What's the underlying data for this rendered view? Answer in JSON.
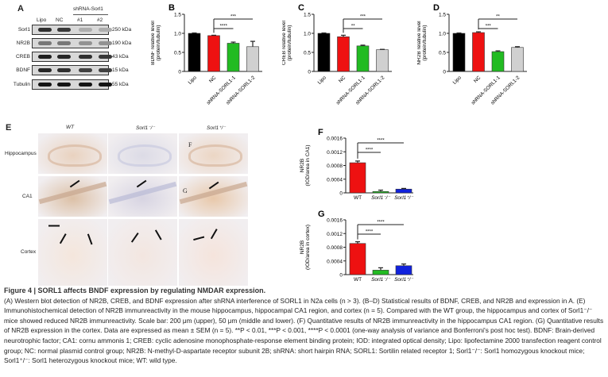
{
  "panel_a": {
    "label": "A",
    "lanes": [
      "Lipo",
      "NC",
      "#1",
      "#2"
    ],
    "group_label": "shRNA-Sorl1",
    "rows": [
      {
        "protein": "Sorl1",
        "kda": "250 kDa",
        "intensity": [
          0.85,
          0.8,
          0.15,
          0.15
        ]
      },
      {
        "protein": "NR2B",
        "kda": "190 kDa",
        "intensity": [
          0.45,
          0.45,
          0.3,
          0.3
        ]
      },
      {
        "protein": "CREB",
        "kda": "43 kDa",
        "intensity": [
          0.95,
          0.9,
          0.85,
          0.8
        ]
      },
      {
        "protein": "BDNF",
        "kda": "15 kDa",
        "intensity": [
          0.9,
          0.85,
          0.75,
          0.75
        ]
      },
      {
        "protein": "Tubulin",
        "kda": "55 kDa",
        "intensity": [
          1,
          1,
          1,
          1
        ]
      }
    ]
  },
  "panel_e": {
    "label": "E",
    "columns": [
      "WT",
      "Sorl1⁻/⁻",
      "Sorl1⁺/⁻"
    ],
    "rows": [
      "Hippocampus",
      "CA1",
      "Cortex"
    ],
    "overlay_letters": [
      "F",
      "G"
    ]
  },
  "chart_data": [
    {
      "id": "B",
      "label": "B",
      "type": "bar",
      "categories": [
        "Lipo",
        "NC",
        "shRNA-SORL1-1",
        "shRNA-SORL1-2"
      ],
      "values": [
        1.0,
        0.94,
        0.74,
        0.65
      ],
      "errors": [
        0.01,
        0.01,
        0.03,
        0.14
      ],
      "colors": [
        "#000000",
        "#ee1111",
        "#22bb22",
        "#d0d0d0"
      ],
      "ylabel": "BDNF relative level",
      "ylabel2": "(protein/tubulin)",
      "ylim": [
        0,
        1.5
      ],
      "yticks": [
        "0",
        "0.5",
        "1.0",
        "1.5"
      ],
      "ytick_values": [
        0,
        0.5,
        1.0,
        1.5
      ],
      "significance": [
        {
          "from": 1,
          "to": 2,
          "label": "****"
        },
        {
          "from": 1,
          "to": 3,
          "label": "***"
        }
      ]
    },
    {
      "id": "C",
      "label": "C",
      "type": "bar",
      "categories": [
        "Lipo",
        "NC",
        "shRNA-SORL1-1",
        "shRNA-SORL1-2"
      ],
      "values": [
        1.0,
        0.91,
        0.67,
        0.57
      ],
      "errors": [
        0.01,
        0.04,
        0.02,
        0.01
      ],
      "colors": [
        "#000000",
        "#ee1111",
        "#22bb22",
        "#d0d0d0"
      ],
      "ylabel": "CREB relative level",
      "ylabel2": "(protein/tubulin)",
      "ylim": [
        0,
        1.5
      ],
      "yticks": [
        "0",
        "0.5",
        "1.0",
        "1.5"
      ],
      "ytick_values": [
        0,
        0.5,
        1.0,
        1.5
      ],
      "significance": [
        {
          "from": 1,
          "to": 2,
          "label": "**"
        },
        {
          "from": 1,
          "to": 3,
          "label": "***"
        }
      ]
    },
    {
      "id": "D",
      "label": "D",
      "type": "bar",
      "categories": [
        "Lipo",
        "NC",
        "shRNA-SORL1-1",
        "shRNA-SORL1-2"
      ],
      "values": [
        1.0,
        1.02,
        0.52,
        0.63
      ],
      "errors": [
        0.01,
        0.02,
        0.02,
        0.02
      ],
      "colors": [
        "#000000",
        "#ee1111",
        "#22bb22",
        "#d0d0d0"
      ],
      "ylabel": "NR2B relative level",
      "ylabel2": "(protein/tubulin)",
      "ylim": [
        0,
        1.5
      ],
      "yticks": [
        "0",
        "0.5",
        "1.0",
        "1.5"
      ],
      "ytick_values": [
        0,
        0.5,
        1.0,
        1.5
      ],
      "significance": [
        {
          "from": 1,
          "to": 2,
          "label": "***"
        },
        {
          "from": 1,
          "to": 3,
          "label": "**"
        }
      ]
    },
    {
      "id": "F",
      "label": "F",
      "type": "bar",
      "categories": [
        "WT",
        "Sorl1⁻/⁻",
        "Sorl1⁺/⁻"
      ],
      "values": [
        0.00088,
        4e-05,
        0.00011
      ],
      "errors": [
        5e-05,
        4e-05,
        2e-05
      ],
      "colors": [
        "#ee1111",
        "#22bb22",
        "#1122dd"
      ],
      "ylabel": "NR2B",
      "ylabel2": "(IOD/area in CA1)",
      "ylim": [
        0,
        0.0016
      ],
      "yticks": [
        "0",
        "0.0004",
        "0.0008",
        "0.0012",
        "0.0016"
      ],
      "ytick_values": [
        0,
        0.0004,
        0.0008,
        0.0012,
        0.0016
      ],
      "significance": [
        {
          "from": 0,
          "to": 1,
          "label": "****"
        },
        {
          "from": 0,
          "to": 2,
          "label": "****"
        }
      ]
    },
    {
      "id": "G",
      "label": "G",
      "type": "bar",
      "categories": [
        "WT",
        "Sorl1⁻/⁻",
        "Sorl1⁺/⁻"
      ],
      "values": [
        0.00091,
        0.00013,
        0.00026
      ],
      "errors": [
        5e-05,
        7e-05,
        5e-05
      ],
      "colors": [
        "#ee1111",
        "#22bb22",
        "#1122dd"
      ],
      "ylabel": "NR2B",
      "ylabel2": "(IOD/area in cortex)",
      "ylim": [
        0,
        0.0016
      ],
      "yticks": [
        "0",
        "0.0004",
        "0.0008",
        "0.0012",
        "0.0016"
      ],
      "ytick_values": [
        0,
        0.0004,
        0.0008,
        0.0012,
        0.0016
      ],
      "significance": [
        {
          "from": 0,
          "to": 1,
          "label": "****"
        },
        {
          "from": 0,
          "to": 2,
          "label": "****"
        }
      ]
    }
  ],
  "caption": {
    "title": "Figure 4 | SORL1 affects BNDF expression by regulating NMDAR expression.",
    "body": "(A) Western blot detection of NR2B, CREB, and BDNF expression after shRNA interference of SORL1 in N2a cells (n > 3). (B–D) Statistical results of BDNF, CREB, and NR2B and expression in A. (E) Immunohistochemical detection of NR2B immunreactivity in the mouse hippocampus, hippocampal CA1 region, and cortex (n = 5). Compared with the WT group, the hippocampus and cortex of Sorl1⁻/⁻ mice showed reduced NR2B immunreactivity. Scale bar: 200 μm (upper), 50 μm (middle and lower). (F) Quantitative results of NR2B immunreactivity in the hippocampus CA1 region. (G) Quantitative results of NR2B expression in the cortex. Data are expressed as mean ± SEM (n = 5). **P < 0.01, ***P < 0.001, ****P < 0.0001 (one-way analysis of variance and Bonferroni's post hoc test). BDNF: Brain-derived neurotrophic factor; CA1: cornu ammonis 1; CREB: cyclic adenosine monophosphate-response element binding protein; IOD: integrated optical density; Lipo: lipofectamine 2000 transfection reagent control group; NC: normal plasmid control group; NR2B: N-methyl-D-aspartate receptor subunit 2B; shRNA: short hairpin RNA; SORL1: Sortilin related receptor 1; Sorl1⁻/⁻: Sorl1 homozygous knockout mice; Sorl1⁺/⁻: Sorl1 heterozygous knockout mice; WT: wild type."
  }
}
